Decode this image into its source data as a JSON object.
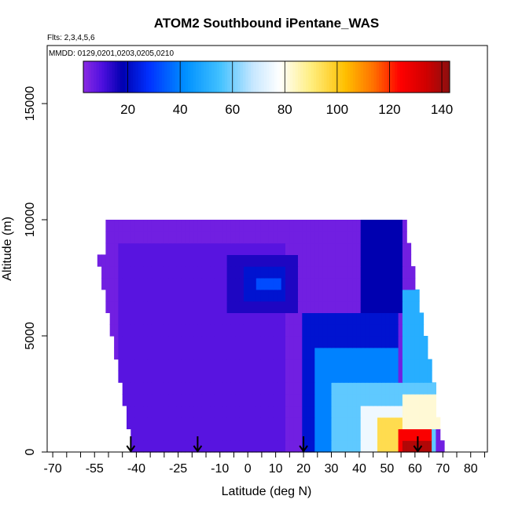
{
  "chart_data": {
    "type": "heatmap",
    "title": "ATOM2 Southbound iPentane_WAS",
    "subtitle_flights": "Flts: 2,3,4,5,6",
    "subtitle_dates": "MMDD: 0129,0201,0203,0205,0210",
    "xlabel": "Latitude (deg N)",
    "ylabel": "Altitude (m)",
    "xlim": [
      -72,
      86
    ],
    "ylim": [
      0,
      17500
    ],
    "x_ticks": [
      -70,
      -55,
      -40,
      -25,
      -10,
      0,
      10,
      20,
      30,
      40,
      50,
      60,
      70,
      80
    ],
    "x_tick_labels": [
      "-70",
      "-55",
      "-40",
      "-25",
      "-10",
      "0",
      "10",
      "20",
      "30",
      "40",
      "50",
      "60",
      "70",
      "80"
    ],
    "x_minor_ticks": [
      -65,
      -60,
      -50,
      -45,
      -35,
      -30,
      -20,
      -15,
      -5,
      5,
      15,
      25,
      35,
      45,
      55,
      65,
      75,
      85
    ],
    "y_ticks": [
      0,
      5000,
      10000,
      15000
    ],
    "y_tick_labels": [
      "0",
      "5000",
      "10000",
      "15000"
    ],
    "colorbar": {
      "min": 3,
      "max": 143,
      "ticks": [
        20,
        40,
        60,
        80,
        100,
        120,
        140
      ],
      "tick_labels": [
        "20",
        "40",
        "60",
        "80",
        "100",
        "120",
        "140"
      ],
      "divisions": [
        20,
        40,
        60,
        80,
        100,
        120,
        140
      ],
      "stops": [
        {
          "v": 3,
          "color": "#8a2be2"
        },
        {
          "v": 10,
          "color": "#5010e0"
        },
        {
          "v": 18,
          "color": "#0000b0"
        },
        {
          "v": 28,
          "color": "#0030ff"
        },
        {
          "v": 42,
          "color": "#0090ff"
        },
        {
          "v": 55,
          "color": "#40c0ff"
        },
        {
          "v": 68,
          "color": "#c8e8ff"
        },
        {
          "v": 78,
          "color": "#ffffff"
        },
        {
          "v": 90,
          "color": "#ffee80"
        },
        {
          "v": 103,
          "color": "#ffc000"
        },
        {
          "v": 114,
          "color": "#ff7000"
        },
        {
          "v": 124,
          "color": "#ff0000"
        },
        {
          "v": 134,
          "color": "#d00000"
        },
        {
          "v": 143,
          "color": "#8b1010"
        }
      ]
    },
    "grid": false,
    "legend": "top-colorbar",
    "flight_markers_lat": [
      -42,
      -18,
      20,
      61
    ],
    "field": {
      "lat_start": -54,
      "lat_step": 1.5,
      "alt_levels": [
        0,
        500,
        1000,
        1500,
        2000,
        2500,
        3000,
        3500,
        4000,
        4500,
        5000,
        5500,
        6000,
        6500,
        7000,
        7500,
        8000,
        8500,
        9000,
        9500,
        10000
      ],
      "notes": "cells generated from region values below",
      "background": 6,
      "regions": [
        {
          "lat": [
            -47,
            13
          ],
          "alt": [
            0,
            9000
          ],
          "v": 9
        },
        {
          "lat": [
            -8,
            18
          ],
          "alt": [
            6000,
            8500
          ],
          "v": 15
        },
        {
          "lat": [
            -2,
            14
          ],
          "alt": [
            6500,
            8000
          ],
          "v": 22
        },
        {
          "lat": [
            3,
            12
          ],
          "alt": [
            7000,
            7600
          ],
          "v": 32
        },
        {
          "lat": [
            20,
            54
          ],
          "alt": [
            0,
            6000
          ],
          "v": 22
        },
        {
          "lat": [
            24,
            54
          ],
          "alt": [
            0,
            4500
          ],
          "v": 40
        },
        {
          "lat": [
            30,
            68
          ],
          "alt": [
            0,
            3000
          ],
          "v": 58
        },
        {
          "lat": [
            40,
            62
          ],
          "alt": [
            0,
            2000
          ],
          "v": 75
        },
        {
          "lat": [
            47,
            56
          ],
          "alt": [
            0,
            1500
          ],
          "v": 95
        },
        {
          "lat": [
            54,
            66
          ],
          "alt": [
            0,
            900
          ],
          "v": 125
        },
        {
          "lat": [
            56,
            66
          ],
          "alt": [
            0,
            500
          ],
          "v": 138
        },
        {
          "lat": [
            56,
            70
          ],
          "alt": [
            900,
            2500
          ],
          "v": 82
        },
        {
          "lat": [
            40,
            56
          ],
          "alt": [
            6000,
            10500
          ],
          "v": 18
        },
        {
          "lat": [
            56,
            70
          ],
          "alt": [
            3000,
            7000
          ],
          "v": 50
        }
      ]
    }
  }
}
